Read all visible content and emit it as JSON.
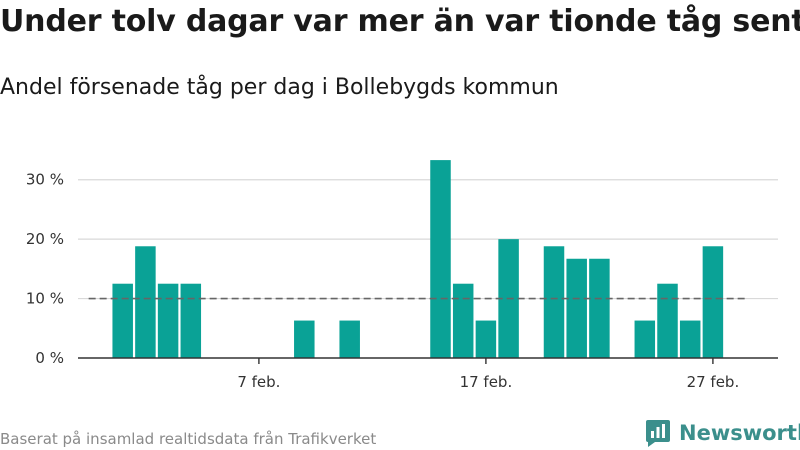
{
  "title": "Under tolv dagar var mer än var tionde tåg sent",
  "subtitle": "Andel försenade tåg per dag i Bollebygds kommun",
  "footer": "Baserat på insamlad realtidsdata från Trafikverket",
  "brand": "Newsworthy",
  "colors": {
    "bar": "#0aa296",
    "grid": "#d9d9d9",
    "reference": "#666666",
    "brand": "#3b8f8c"
  },
  "chart_data": {
    "type": "bar",
    "title": "Under tolv dagar var mer än var tionde tåg sent",
    "subtitle": "Andel försenade tåg per dag i Bollebygds kommun",
    "xlabel": "",
    "ylabel": "",
    "unit": "%",
    "ylim": [
      0,
      35
    ],
    "yticks": [
      {
        "value": 0,
        "label": "0 %"
      },
      {
        "value": 10,
        "label": "10 %"
      },
      {
        "value": 20,
        "label": "20 %"
      },
      {
        "value": 30,
        "label": "30 %"
      }
    ],
    "xticks": [
      {
        "day": 7,
        "label": "7 feb."
      },
      {
        "day": 17,
        "label": "17 feb."
      },
      {
        "day": 27,
        "label": "27 feb."
      }
    ],
    "x_range_days": [
      -1,
      29
    ],
    "reference_line": {
      "value": 10,
      "from_day": -0.5,
      "to_day": 28.5,
      "style": "dashed"
    },
    "grid": true,
    "legend": "none",
    "days": [
      1,
      2,
      3,
      4,
      5,
      6,
      7,
      8,
      9,
      10,
      11,
      12,
      13,
      14,
      15,
      16,
      17,
      18,
      19,
      20,
      21,
      22,
      23,
      24,
      25,
      26,
      27,
      28
    ],
    "values": [
      12.5,
      18.8,
      12.5,
      12.5,
      0,
      0,
      0,
      0,
      6.3,
      0,
      6.3,
      0,
      0,
      0,
      33.3,
      12.5,
      6.3,
      20,
      0,
      18.8,
      16.7,
      16.7,
      0,
      6.3,
      12.5,
      6.3,
      18.8,
      0
    ]
  }
}
